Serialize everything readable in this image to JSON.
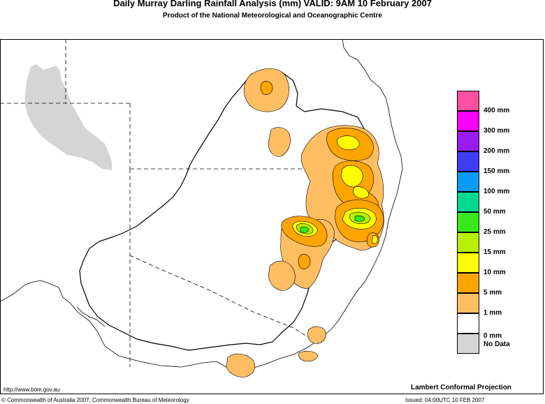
{
  "header": {
    "title": "Daily Murray Darling Rainfall Analysis (mm)  VALID: 9AM 10 February 2007",
    "subtitle": "Product of the National Meteorological and Oceanographic Centre"
  },
  "legend": {
    "items": [
      {
        "label": "400 mm",
        "color": "#ff4fa0"
      },
      {
        "label": "300 mm",
        "color": "#ff00ff"
      },
      {
        "label": "200 mm",
        "color": "#9a1cf0"
      },
      {
        "label": "150 mm",
        "color": "#3d3df5"
      },
      {
        "label": "100 mm",
        "color": "#089cf8"
      },
      {
        "label": "50 mm",
        "color": "#00d890"
      },
      {
        "label": "25 mm",
        "color": "#39e81a"
      },
      {
        "label": "15 mm",
        "color": "#b6f000"
      },
      {
        "label": "10 mm",
        "color": "#ffff00"
      },
      {
        "label": "5 mm",
        "color": "#ffa500"
      },
      {
        "label": "1 mm",
        "color": "#ffbe62"
      }
    ],
    "zero_label": "0 mm",
    "nodata_label": "No Data",
    "zero_color": "#ffffff",
    "nodata_color": "#d5d5d5"
  },
  "footer": {
    "url": "http://www.bom.gov.au",
    "projection": "Lambert Conformal Projection",
    "copyright": "© Commonwealth of Australia 2007, Commonwealth Bureau of Meteorology",
    "issued": "Issued: 04:00UTC 10 FEB 2007"
  }
}
